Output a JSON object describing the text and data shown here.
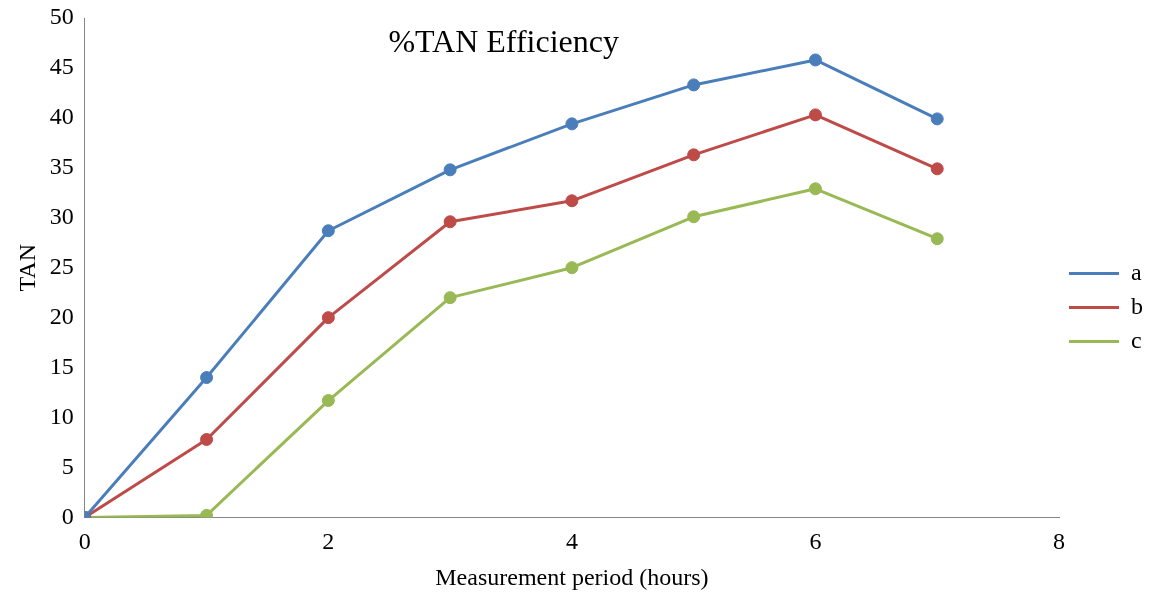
{
  "chart_data": {
    "type": "line",
    "title": "%TAN Efficiency",
    "xlabel": "Measurement period (hours)",
    "ylabel": "TAN",
    "x": [
      0,
      1,
      2,
      3,
      4,
      5,
      6,
      7
    ],
    "series": [
      {
        "name": "a",
        "color": "#4a7ebb",
        "values": [
          0,
          14.0,
          28.7,
          34.8,
          39.4,
          43.3,
          45.8,
          39.9
        ]
      },
      {
        "name": "b",
        "color": "#be4b48",
        "values": [
          0,
          7.8,
          20.0,
          29.6,
          31.7,
          36.3,
          40.3,
          34.9
        ]
      },
      {
        "name": "c",
        "color": "#98b954",
        "values": [
          0,
          0.2,
          11.7,
          22.0,
          25.0,
          30.1,
          32.9,
          27.9
        ]
      }
    ],
    "xlim": [
      0,
      8
    ],
    "xticks": [
      0,
      2,
      4,
      6,
      8
    ],
    "ylim": [
      0,
      50
    ],
    "yticks": [
      0,
      5,
      10,
      15,
      20,
      25,
      30,
      35,
      40,
      45,
      50
    ],
    "grid": false,
    "legend": "right",
    "marker": "circle",
    "line_style": "solid"
  }
}
